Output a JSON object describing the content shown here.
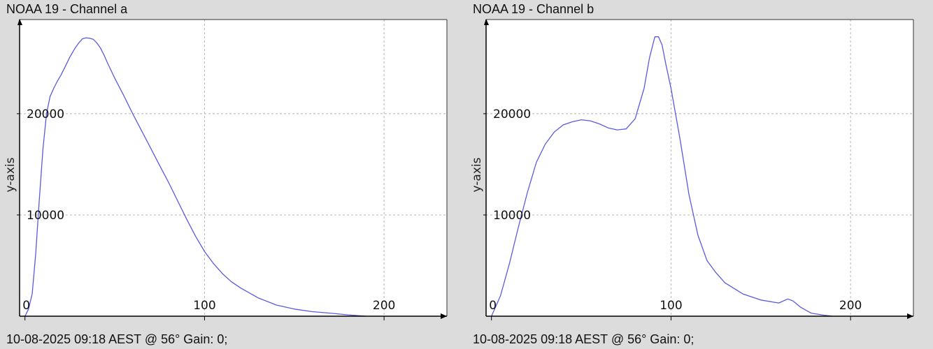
{
  "colors": {
    "background": "#dcdcdc",
    "plot_area": "#ffffff",
    "series": "#5a5ae0",
    "grid": "#b4b4b4",
    "axis": "#000000"
  },
  "chart_data": [
    {
      "type": "line",
      "title": "NOAA 19 - Channel a",
      "xlabel": "",
      "ylabel": "y-axis",
      "footer": "10-08-2025 09:18 AEST @ 56° Gain: 0;",
      "xlim": [
        -3,
        235
      ],
      "ylim": [
        0,
        29300
      ],
      "x_ticks": [
        0,
        100,
        200
      ],
      "x_tick_labels": [
        "0",
        "100",
        "200"
      ],
      "y_ticks": [
        10000,
        20000
      ],
      "y_tick_labels": [
        "10000",
        "20000"
      ],
      "grid": true,
      "series": [
        {
          "x": [
            0,
            2,
            4,
            6,
            8,
            10,
            12,
            14,
            16,
            18,
            20,
            22,
            25,
            28,
            30,
            32,
            34,
            36,
            38,
            40,
            42,
            44,
            46,
            50,
            55,
            60,
            65,
            70,
            75,
            80,
            85,
            90,
            95,
            100,
            105,
            110,
            115,
            120,
            130,
            140,
            150,
            160,
            170,
            180,
            190
          ],
          "y": [
            0,
            700,
            2200,
            6200,
            11500,
            16500,
            20000,
            21700,
            22500,
            23200,
            23800,
            24500,
            25600,
            26500,
            27000,
            27400,
            27500,
            27450,
            27350,
            27000,
            26500,
            25800,
            25000,
            23500,
            21800,
            20000,
            18300,
            16600,
            14900,
            13200,
            11400,
            9600,
            7900,
            6400,
            5200,
            4200,
            3400,
            2800,
            1800,
            1100,
            700,
            450,
            300,
            130,
            0
          ]
        }
      ]
    },
    {
      "type": "line",
      "title": "NOAA 19 - Channel b",
      "xlabel": "",
      "ylabel": "y-axis",
      "footer": "10-08-2025 09:18 AEST @ 56° Gain: 0;",
      "xlim": [
        -3,
        235
      ],
      "ylim": [
        0,
        29300
      ],
      "x_ticks": [
        0,
        100,
        200
      ],
      "x_tick_labels": [
        "0",
        "100",
        "200"
      ],
      "y_ticks": [
        10000,
        20000
      ],
      "y_tick_labels": [
        "10000",
        "20000"
      ],
      "grid": true,
      "series": [
        {
          "x": [
            0,
            5,
            10,
            15,
            20,
            25,
            30,
            35,
            40,
            45,
            50,
            55,
            60,
            65,
            70,
            75,
            80,
            85,
            88,
            91,
            93,
            95,
            97,
            100,
            105,
            110,
            115,
            120,
            125,
            130,
            140,
            150,
            160,
            165,
            168,
            172,
            178,
            185,
            190
          ],
          "y": [
            0,
            2000,
            5200,
            8800,
            12200,
            15200,
            17000,
            18200,
            18900,
            19200,
            19400,
            19300,
            19000,
            18600,
            18400,
            18500,
            19500,
            22500,
            25500,
            27600,
            27600,
            26800,
            25000,
            22500,
            17500,
            12000,
            8000,
            5500,
            4300,
            3300,
            2200,
            1600,
            1300,
            1700,
            1500,
            900,
            300,
            100,
            0
          ]
        }
      ]
    }
  ]
}
